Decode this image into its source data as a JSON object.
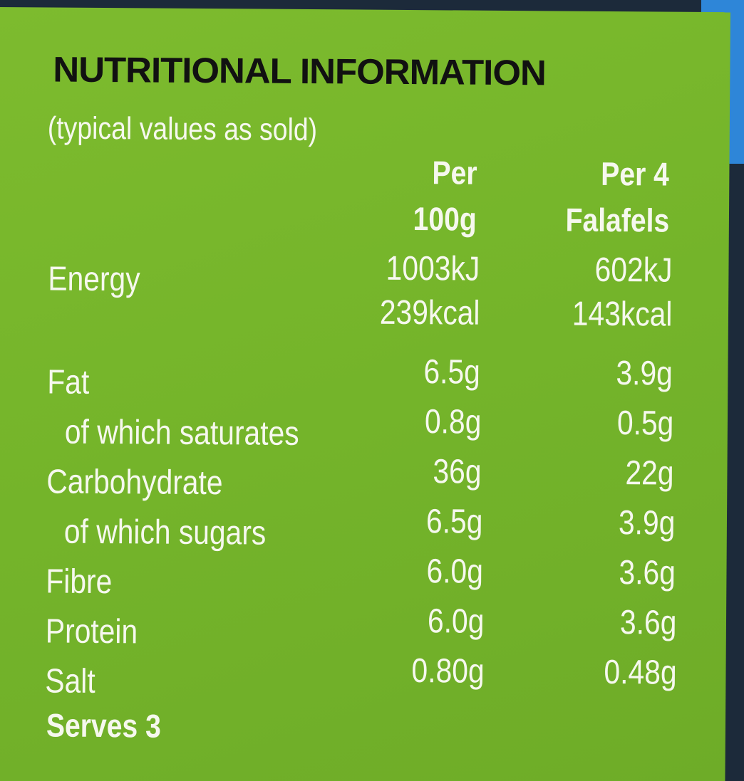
{
  "title": "NUTRITIONAL INFORMATION",
  "subtitle": "(typical values as sold)",
  "headers": [
    [
      "Per",
      "100g"
    ],
    [
      "Per 4",
      "Falafels"
    ]
  ],
  "rows": [
    {
      "label": "Energy",
      "values": [
        [
          "1003kJ",
          "239kcal"
        ],
        [
          "602kJ",
          "143kcal"
        ]
      ]
    },
    {
      "label": "Fat",
      "values": [
        [
          "6.5g"
        ],
        [
          "3.9g"
        ]
      ]
    },
    {
      "label": "of which saturates",
      "values": [
        [
          "0.8g"
        ],
        [
          "0.5g"
        ]
      ]
    },
    {
      "label": "Carbohydrate",
      "values": [
        [
          "36g"
        ],
        [
          "22g"
        ]
      ]
    },
    {
      "label": "of which sugars",
      "values": [
        [
          "6.5g"
        ],
        [
          "3.9g"
        ]
      ]
    },
    {
      "label": "Fibre",
      "values": [
        [
          "6.0g"
        ],
        [
          "3.6g"
        ]
      ]
    },
    {
      "label": "Protein",
      "values": [
        [
          "6.0g"
        ],
        [
          "3.6g"
        ]
      ]
    },
    {
      "label": "Salt",
      "values": [
        [
          "0.80g"
        ],
        [
          "0.48g"
        ]
      ]
    }
  ],
  "footer": "Serves 3"
}
